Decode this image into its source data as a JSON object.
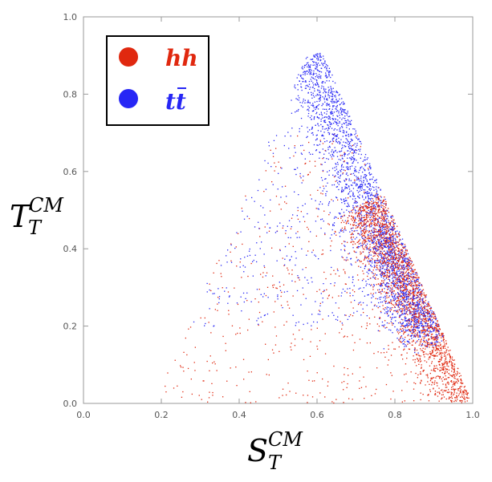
{
  "colors": {
    "hh": "#e0280f",
    "tt": "#2626f5",
    "axis": "#999999",
    "text": "#000000"
  },
  "chart_data": {
    "type": "scatter",
    "xlabel": {
      "main": "S",
      "sub": "T",
      "sup": "CM"
    },
    "ylabel": {
      "main": "T",
      "sub": "T",
      "sup": "CM"
    },
    "xlim": [
      0.0,
      1.0
    ],
    "ylim": [
      0.0,
      1.0
    ],
    "xticks": [
      "0.0",
      "0.2",
      "0.4",
      "0.6",
      "0.8",
      "1.0"
    ],
    "yticks": [
      "0.0",
      "0.2",
      "0.4",
      "0.6",
      "0.8",
      "1.0"
    ],
    "grid": false,
    "legend_position": "top-left",
    "series": [
      {
        "name": "hh",
        "color": "#e0280f",
        "description_of_distribution": "dense band from (0.78,0.35) to (1.0,0.0), sparse spread across 0.2-0.8",
        "sample_points": [
          [
            0.98,
            0.02
          ],
          [
            0.95,
            0.06
          ],
          [
            0.93,
            0.1
          ],
          [
            0.9,
            0.15
          ],
          [
            0.88,
            0.2
          ],
          [
            0.85,
            0.25
          ],
          [
            0.82,
            0.3
          ],
          [
            0.8,
            0.35
          ],
          [
            0.78,
            0.4
          ],
          [
            0.75,
            0.45
          ],
          [
            0.7,
            0.55
          ],
          [
            0.65,
            0.62
          ],
          [
            0.6,
            0.7
          ],
          [
            0.55,
            0.6
          ],
          [
            0.5,
            0.4
          ],
          [
            0.45,
            0.3
          ],
          [
            0.4,
            0.25
          ],
          [
            0.35,
            0.2
          ],
          [
            0.3,
            0.15
          ],
          [
            0.25,
            0.12
          ]
        ]
      },
      {
        "name": "tt̄",
        "color": "#2626f5",
        "description_of_distribution": "dense band from (0.57,0.9) to (0.85,0.2), sparse spread to upper-left",
        "sample_points": [
          [
            0.58,
            0.88
          ],
          [
            0.6,
            0.85
          ],
          [
            0.62,
            0.8
          ],
          [
            0.65,
            0.75
          ],
          [
            0.68,
            0.68
          ],
          [
            0.7,
            0.62
          ],
          [
            0.72,
            0.55
          ],
          [
            0.75,
            0.48
          ],
          [
            0.78,
            0.4
          ],
          [
            0.8,
            0.32
          ],
          [
            0.83,
            0.25
          ],
          [
            0.86,
            0.18
          ],
          [
            0.5,
            0.65
          ],
          [
            0.45,
            0.55
          ],
          [
            0.4,
            0.5
          ],
          [
            0.35,
            0.55
          ],
          [
            0.55,
            0.72
          ],
          [
            0.6,
            0.6
          ],
          [
            0.7,
            0.45
          ],
          [
            0.9,
            0.1
          ]
        ]
      }
    ]
  },
  "legend": {
    "items": [
      {
        "label_main": "hh",
        "overline": false,
        "color_key": "hh"
      },
      {
        "label_main": "tt",
        "overline": true,
        "color_key": "tt"
      }
    ]
  }
}
